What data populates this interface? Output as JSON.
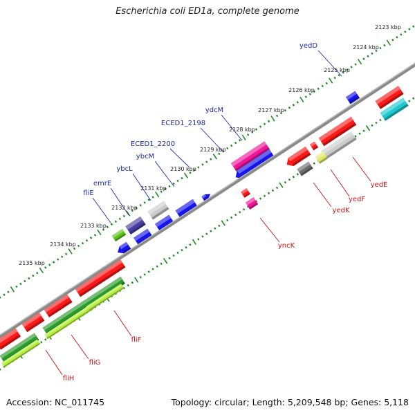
{
  "title": "Escherichia coli ED1a, complete genome",
  "footer": {
    "accession": "Accession: NC_011745",
    "info": "Topology: circular; Length: 5,209,548 bp; Genes: 5,118"
  },
  "colors": {
    "backbone": "#8a8a8a",
    "tick": "#1e8a1e",
    "label_blue": "#1a2aa8",
    "label_red": "#cc1111",
    "red": "#ff1a1a",
    "blue": "#1515ee",
    "magenta": "#f0169a",
    "gray": "#cccccc",
    "darkgray": "#6e6e6e",
    "navy": "#4a3fa0",
    "cyan": "#1fc9cf",
    "green": "#2a9a2a",
    "lightgreen": "#b6ee3c",
    "yellowgreen": "#e0ea6a",
    "lime": "#5cc21a"
  },
  "kbp_labels": [
    "2123 kbp",
    "2124 kbp",
    "2125 kbp",
    "2126 kbp",
    "2127 kbp",
    "2128 kbp",
    "2129 kbp",
    "2130 kbp",
    "2131 kbp",
    "2132 kbp",
    "2133 kbp",
    "2134 kbp",
    "2135 kbp"
  ],
  "gene_labels_top": [
    "yedD",
    "ydcM",
    "ECED1_2198",
    "ECED1_2200",
    "ybcM",
    "ybcL",
    "emrE",
    "fliE"
  ],
  "gene_labels_bottom": [
    "yedE",
    "yedF",
    "yedK",
    "yncK",
    "fliF",
    "fliG",
    "fliH"
  ]
}
